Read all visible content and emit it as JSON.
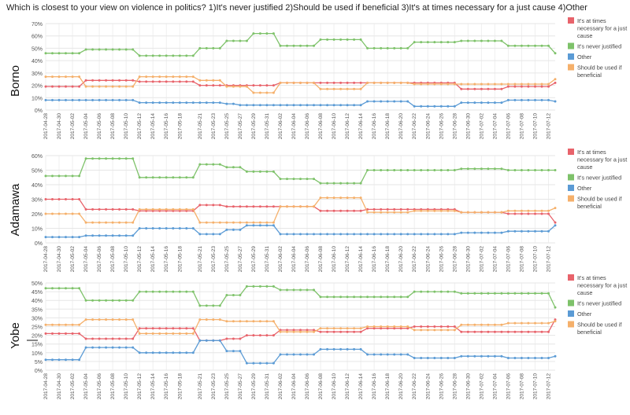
{
  "title": "Which is closest to your view on violence in politics? 1)It's never justified 2)Should be used if beneficial 3)It's at times necessary for a just cause 4)Other",
  "colors": {
    "necessary": "#e8636b",
    "never": "#7ec26a",
    "other": "#5b9bd5",
    "beneficial": "#f5b06b"
  },
  "chart_data": [
    {
      "type": "line",
      "panel": "Borno",
      "ylim": [
        0,
        70
      ],
      "yticks": [
        "0%",
        "10%",
        "20%",
        "30%",
        "40%",
        "50%",
        "60%",
        "70%"
      ],
      "x_start": "2017-04-28",
      "x_end": "2017-07-13",
      "x_tick_labels": [
        "2017-04-28",
        "2017-04-30",
        "2017-05-02",
        "2017-05-04",
        "2017-05-06",
        "2017-05-08",
        "2017-05-10",
        "2017-05-12",
        "2017-05-14",
        "2017-05-16",
        "2017-05-18",
        "2017-05-21",
        "2017-05-23",
        "2017-05-25",
        "2017-05-27",
        "2017-05-29",
        "2017-05-31",
        "2017-06-02",
        "2017-06-04",
        "2017-06-06",
        "2017-06-08",
        "2017-06-10",
        "2017-06-12",
        "2017-06-14",
        "2017-06-16",
        "2017-06-18",
        "2017-06-20",
        "2017-06-22",
        "2017-06-24",
        "2017-06-26",
        "2017-06-28",
        "2017-06-30",
        "2017-07-02",
        "2017-07-04",
        "2017-07-06",
        "2017-07-08",
        "2017-07-10",
        "2017-07-12"
      ],
      "series": [
        {
          "name": "It's at times necessary for a just cause",
          "color_key": "necessary",
          "segments": [
            [
              "2017-04-28",
              19
            ],
            [
              "2017-05-04",
              24
            ],
            [
              "2017-05-12",
              23
            ],
            [
              "2017-05-21",
              20
            ],
            [
              "2017-06-02",
              22
            ],
            [
              "2017-06-29",
              17
            ],
            [
              "2017-07-06",
              19
            ],
            [
              "2017-07-13",
              22
            ]
          ]
        },
        {
          "name": "It's never justified",
          "color_key": "never",
          "segments": [
            [
              "2017-04-28",
              46
            ],
            [
              "2017-05-04",
              49
            ],
            [
              "2017-05-12",
              44
            ],
            [
              "2017-05-21",
              50
            ],
            [
              "2017-05-25",
              56
            ],
            [
              "2017-05-29",
              62
            ],
            [
              "2017-06-02",
              52
            ],
            [
              "2017-06-08",
              57
            ],
            [
              "2017-06-15",
              50
            ],
            [
              "2017-06-22",
              55
            ],
            [
              "2017-06-29",
              56
            ],
            [
              "2017-07-06",
              52
            ],
            [
              "2017-07-13",
              46
            ]
          ]
        },
        {
          "name": "Other",
          "color_key": "other",
          "segments": [
            [
              "2017-04-28",
              8
            ],
            [
              "2017-05-12",
              6
            ],
            [
              "2017-05-25",
              5
            ],
            [
              "2017-05-27",
              4
            ],
            [
              "2017-06-15",
              7
            ],
            [
              "2017-06-22",
              3
            ],
            [
              "2017-06-29",
              6
            ],
            [
              "2017-07-06",
              8
            ],
            [
              "2017-07-13",
              7
            ]
          ]
        },
        {
          "name": "Should be used if beneficial",
          "color_key": "beneficial",
          "segments": [
            [
              "2017-04-28",
              27
            ],
            [
              "2017-05-04",
              19
            ],
            [
              "2017-05-12",
              27
            ],
            [
              "2017-05-21",
              24
            ],
            [
              "2017-05-25",
              19
            ],
            [
              "2017-05-29",
              14
            ],
            [
              "2017-06-02",
              22
            ],
            [
              "2017-06-08",
              17
            ],
            [
              "2017-06-15",
              22
            ],
            [
              "2017-06-22",
              21
            ],
            [
              "2017-07-12",
              21
            ],
            [
              "2017-07-13",
              25
            ]
          ]
        }
      ]
    },
    {
      "type": "line",
      "panel": "Adamawa",
      "ylim": [
        0,
        60
      ],
      "yticks": [
        "0%",
        "10%",
        "20%",
        "30%",
        "40%",
        "50%",
        "60%"
      ],
      "x_start": "2017-04-28",
      "x_end": "2017-07-13",
      "x_tick_labels": [
        "2017-04-28",
        "2017-04-30",
        "2017-05-02",
        "2017-05-04",
        "2017-05-06",
        "2017-05-08",
        "2017-05-10",
        "2017-05-12",
        "2017-05-14",
        "2017-05-16",
        "2017-05-18",
        "2017-05-21",
        "2017-05-23",
        "2017-05-25",
        "2017-05-27",
        "2017-05-29",
        "2017-05-31",
        "2017-06-02",
        "2017-06-04",
        "2017-06-06",
        "2017-06-08",
        "2017-06-10",
        "2017-06-12",
        "2017-06-14",
        "2017-06-16",
        "2017-06-18",
        "2017-06-20",
        "2017-06-22",
        "2017-06-24",
        "2017-06-26",
        "2017-06-28",
        "2017-06-30",
        "2017-07-02",
        "2017-07-04",
        "2017-07-06",
        "2017-07-08",
        "2017-07-10",
        "2017-07-12"
      ],
      "series": [
        {
          "name": "It's at times necessary for a just cause",
          "color_key": "necessary",
          "segments": [
            [
              "2017-04-28",
              30
            ],
            [
              "2017-05-04",
              23
            ],
            [
              "2017-05-12",
              22
            ],
            [
              "2017-05-21",
              26
            ],
            [
              "2017-05-25",
              25
            ],
            [
              "2017-06-08",
              22
            ],
            [
              "2017-06-15",
              23
            ],
            [
              "2017-06-29",
              21
            ],
            [
              "2017-07-06",
              20
            ],
            [
              "2017-07-12",
              20
            ],
            [
              "2017-07-13",
              14
            ]
          ]
        },
        {
          "name": "It's never justified",
          "color_key": "never",
          "segments": [
            [
              "2017-04-28",
              46
            ],
            [
              "2017-05-04",
              58
            ],
            [
              "2017-05-12",
              45
            ],
            [
              "2017-05-21",
              54
            ],
            [
              "2017-05-25",
              52
            ],
            [
              "2017-05-28",
              49
            ],
            [
              "2017-06-02",
              44
            ],
            [
              "2017-06-08",
              41
            ],
            [
              "2017-06-15",
              50
            ],
            [
              "2017-06-29",
              51
            ],
            [
              "2017-07-06",
              50
            ],
            [
              "2017-07-13",
              50
            ]
          ]
        },
        {
          "name": "Other",
          "color_key": "other",
          "segments": [
            [
              "2017-04-28",
              4
            ],
            [
              "2017-05-04",
              5
            ],
            [
              "2017-05-12",
              10
            ],
            [
              "2017-05-21",
              6
            ],
            [
              "2017-05-25",
              9
            ],
            [
              "2017-05-28",
              12
            ],
            [
              "2017-06-02",
              6
            ],
            [
              "2017-06-29",
              7
            ],
            [
              "2017-07-06",
              8
            ],
            [
              "2017-07-12",
              8
            ],
            [
              "2017-07-13",
              12
            ]
          ]
        },
        {
          "name": "Should be used if beneficial",
          "color_key": "beneficial",
          "segments": [
            [
              "2017-04-28",
              20
            ],
            [
              "2017-05-04",
              14
            ],
            [
              "2017-05-12",
              23
            ],
            [
              "2017-05-21",
              14
            ],
            [
              "2017-06-02",
              25
            ],
            [
              "2017-06-08",
              31
            ],
            [
              "2017-06-15",
              21
            ],
            [
              "2017-06-22",
              22
            ],
            [
              "2017-06-29",
              21
            ],
            [
              "2017-07-06",
              22
            ],
            [
              "2017-07-12",
              22
            ],
            [
              "2017-07-13",
              24
            ]
          ]
        }
      ]
    },
    {
      "type": "line",
      "panel": "Yobe",
      "ylim": [
        0,
        50
      ],
      "yticks": [
        "0%",
        "5%",
        "10%",
        "15%",
        "20%",
        "25%",
        "30%",
        "35%",
        "40%",
        "45%",
        "50%"
      ],
      "x_start": "2017-04-28",
      "x_end": "2017-07-13",
      "x_tick_labels": [
        "2017-04-28",
        "2017-04-30",
        "2017-05-02",
        "2017-05-04",
        "2017-05-06",
        "2017-05-08",
        "2017-05-10",
        "2017-05-12",
        "2017-05-14",
        "2017-05-16",
        "2017-05-18",
        "2017-05-21",
        "2017-05-23",
        "2017-05-25",
        "2017-05-27",
        "2017-05-29",
        "2017-05-31",
        "2017-06-02",
        "2017-06-04",
        "2017-06-06",
        "2017-06-08",
        "2017-06-10",
        "2017-06-12",
        "2017-06-14",
        "2017-06-16",
        "2017-06-18",
        "2017-06-20",
        "2017-06-22",
        "2017-06-24",
        "2017-06-26",
        "2017-06-28",
        "2017-06-30",
        "2017-07-02",
        "2017-07-04",
        "2017-07-06",
        "2017-07-08",
        "2017-07-10",
        "2017-07-12"
      ],
      "series": [
        {
          "name": "It's at times necessary for a just cause",
          "color_key": "necessary",
          "segments": [
            [
              "2017-04-28",
              21
            ],
            [
              "2017-05-04",
              18
            ],
            [
              "2017-05-12",
              24
            ],
            [
              "2017-05-21",
              17
            ],
            [
              "2017-05-25",
              18
            ],
            [
              "2017-05-28",
              20
            ],
            [
              "2017-06-02",
              23
            ],
            [
              "2017-06-08",
              22
            ],
            [
              "2017-06-15",
              24
            ],
            [
              "2017-06-22",
              25
            ],
            [
              "2017-06-29",
              22
            ],
            [
              "2017-07-06",
              22
            ],
            [
              "2017-07-12",
              22
            ],
            [
              "2017-07-13",
              29
            ]
          ]
        },
        {
          "name": "It's never justified",
          "color_key": "never",
          "segments": [
            [
              "2017-04-28",
              47
            ],
            [
              "2017-05-04",
              40
            ],
            [
              "2017-05-12",
              45
            ],
            [
              "2017-05-21",
              37
            ],
            [
              "2017-05-25",
              43
            ],
            [
              "2017-05-28",
              48
            ],
            [
              "2017-06-02",
              46
            ],
            [
              "2017-06-08",
              42
            ],
            [
              "2017-06-22",
              45
            ],
            [
              "2017-06-29",
              44
            ],
            [
              "2017-07-12",
              44
            ],
            [
              "2017-07-13",
              36
            ]
          ]
        },
        {
          "name": "Other",
          "color_key": "other",
          "segments": [
            [
              "2017-04-28",
              6
            ],
            [
              "2017-05-04",
              13
            ],
            [
              "2017-05-12",
              10
            ],
            [
              "2017-05-21",
              17
            ],
            [
              "2017-05-25",
              11
            ],
            [
              "2017-05-28",
              4
            ],
            [
              "2017-06-02",
              9
            ],
            [
              "2017-06-08",
              12
            ],
            [
              "2017-06-15",
              9
            ],
            [
              "2017-06-22",
              7
            ],
            [
              "2017-06-29",
              8
            ],
            [
              "2017-07-06",
              7
            ],
            [
              "2017-07-13",
              8
            ]
          ]
        },
        {
          "name": "Should be used if beneficial",
          "color_key": "beneficial",
          "segments": [
            [
              "2017-04-28",
              26
            ],
            [
              "2017-05-04",
              29
            ],
            [
              "2017-05-12",
              21
            ],
            [
              "2017-05-21",
              29
            ],
            [
              "2017-05-25",
              28
            ],
            [
              "2017-06-02",
              22
            ],
            [
              "2017-06-08",
              24
            ],
            [
              "2017-06-15",
              25
            ],
            [
              "2017-06-22",
              23
            ],
            [
              "2017-06-29",
              26
            ],
            [
              "2017-07-06",
              27
            ],
            [
              "2017-07-12",
              27
            ],
            [
              "2017-07-13",
              28
            ]
          ]
        }
      ]
    }
  ],
  "legend": [
    {
      "label": "It's at times necessary for a just cause",
      "color_key": "necessary"
    },
    {
      "label": "It's never justified",
      "color_key": "never"
    },
    {
      "label": "Other",
      "color_key": "other"
    },
    {
      "label": "Should be used if beneficial",
      "color_key": "beneficial"
    }
  ]
}
